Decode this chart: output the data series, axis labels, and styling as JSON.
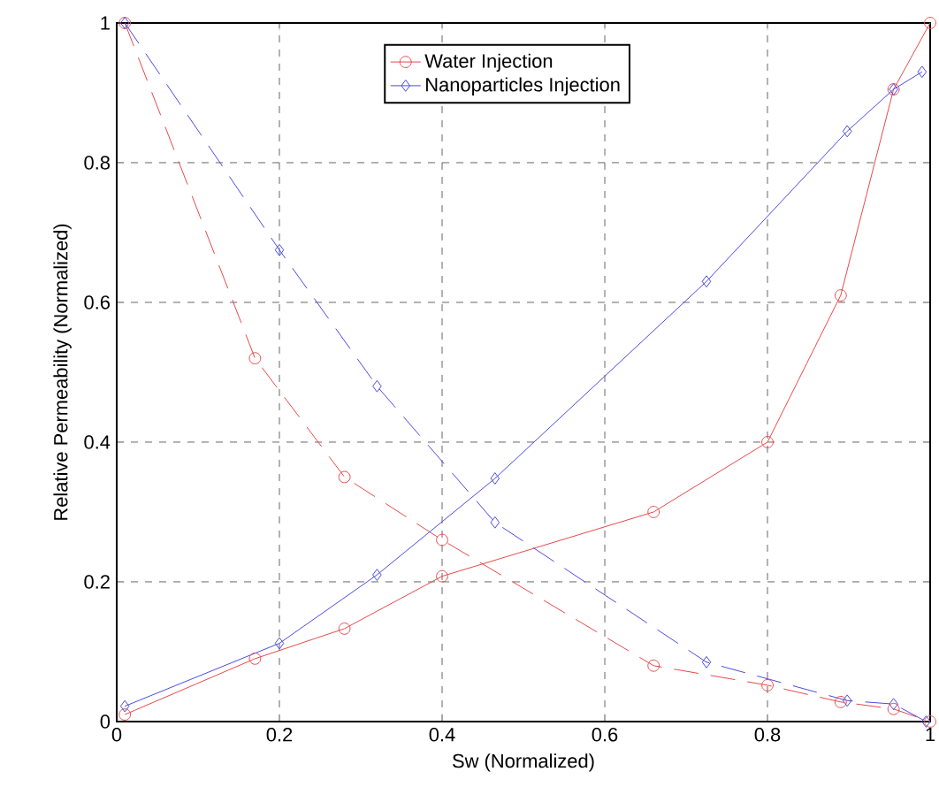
{
  "chart_data": {
    "type": "line",
    "xlabel": "Sw (Normalized)",
    "ylabel": "Relative Permeability (Normalized)",
    "xlim": [
      0,
      1
    ],
    "ylim": [
      0,
      1
    ],
    "xticks": [
      0,
      0.2,
      0.4,
      0.6,
      0.8,
      1
    ],
    "yticks": [
      0,
      0.2,
      0.4,
      0.6,
      0.8,
      1
    ],
    "grid": true,
    "legend": "top",
    "series": [
      {
        "name": "Water Injection",
        "color": "#e8474a",
        "marker": "circle",
        "line_style": "solid",
        "x": [
          0.01,
          0.17,
          0.28,
          0.4,
          0.66,
          0.8,
          0.89,
          0.955,
          1.0
        ],
        "values": [
          0.01,
          0.09,
          0.133,
          0.208,
          0.3,
          0.4,
          0.61,
          0.905,
          1.0
        ]
      },
      {
        "color": "#e8474a",
        "marker": "circle",
        "line_style": "dashed",
        "x": [
          0.01,
          0.17,
          0.28,
          0.4,
          0.66,
          0.8,
          0.89,
          0.955,
          1.0
        ],
        "values": [
          1.0,
          0.52,
          0.35,
          0.26,
          0.08,
          0.052,
          0.028,
          0.018,
          0.0
        ]
      },
      {
        "name": "Nanoparticles Injection",
        "color": "#4a4ae0",
        "marker": "diamond",
        "line_style": "solid",
        "x": [
          0.01,
          0.2,
          0.32,
          0.465,
          0.725,
          0.898,
          0.955,
          0.99
        ],
        "values": [
          0.022,
          0.112,
          0.21,
          0.348,
          0.63,
          0.845,
          0.905,
          0.93
        ]
      },
      {
        "color": "#4a4ae0",
        "marker": "diamond",
        "line_style": "dashed",
        "x": [
          0.01,
          0.2,
          0.32,
          0.465,
          0.725,
          0.898,
          0.955,
          0.995
        ],
        "values": [
          1.0,
          0.675,
          0.48,
          0.285,
          0.085,
          0.03,
          0.025,
          0.0
        ]
      }
    ]
  }
}
